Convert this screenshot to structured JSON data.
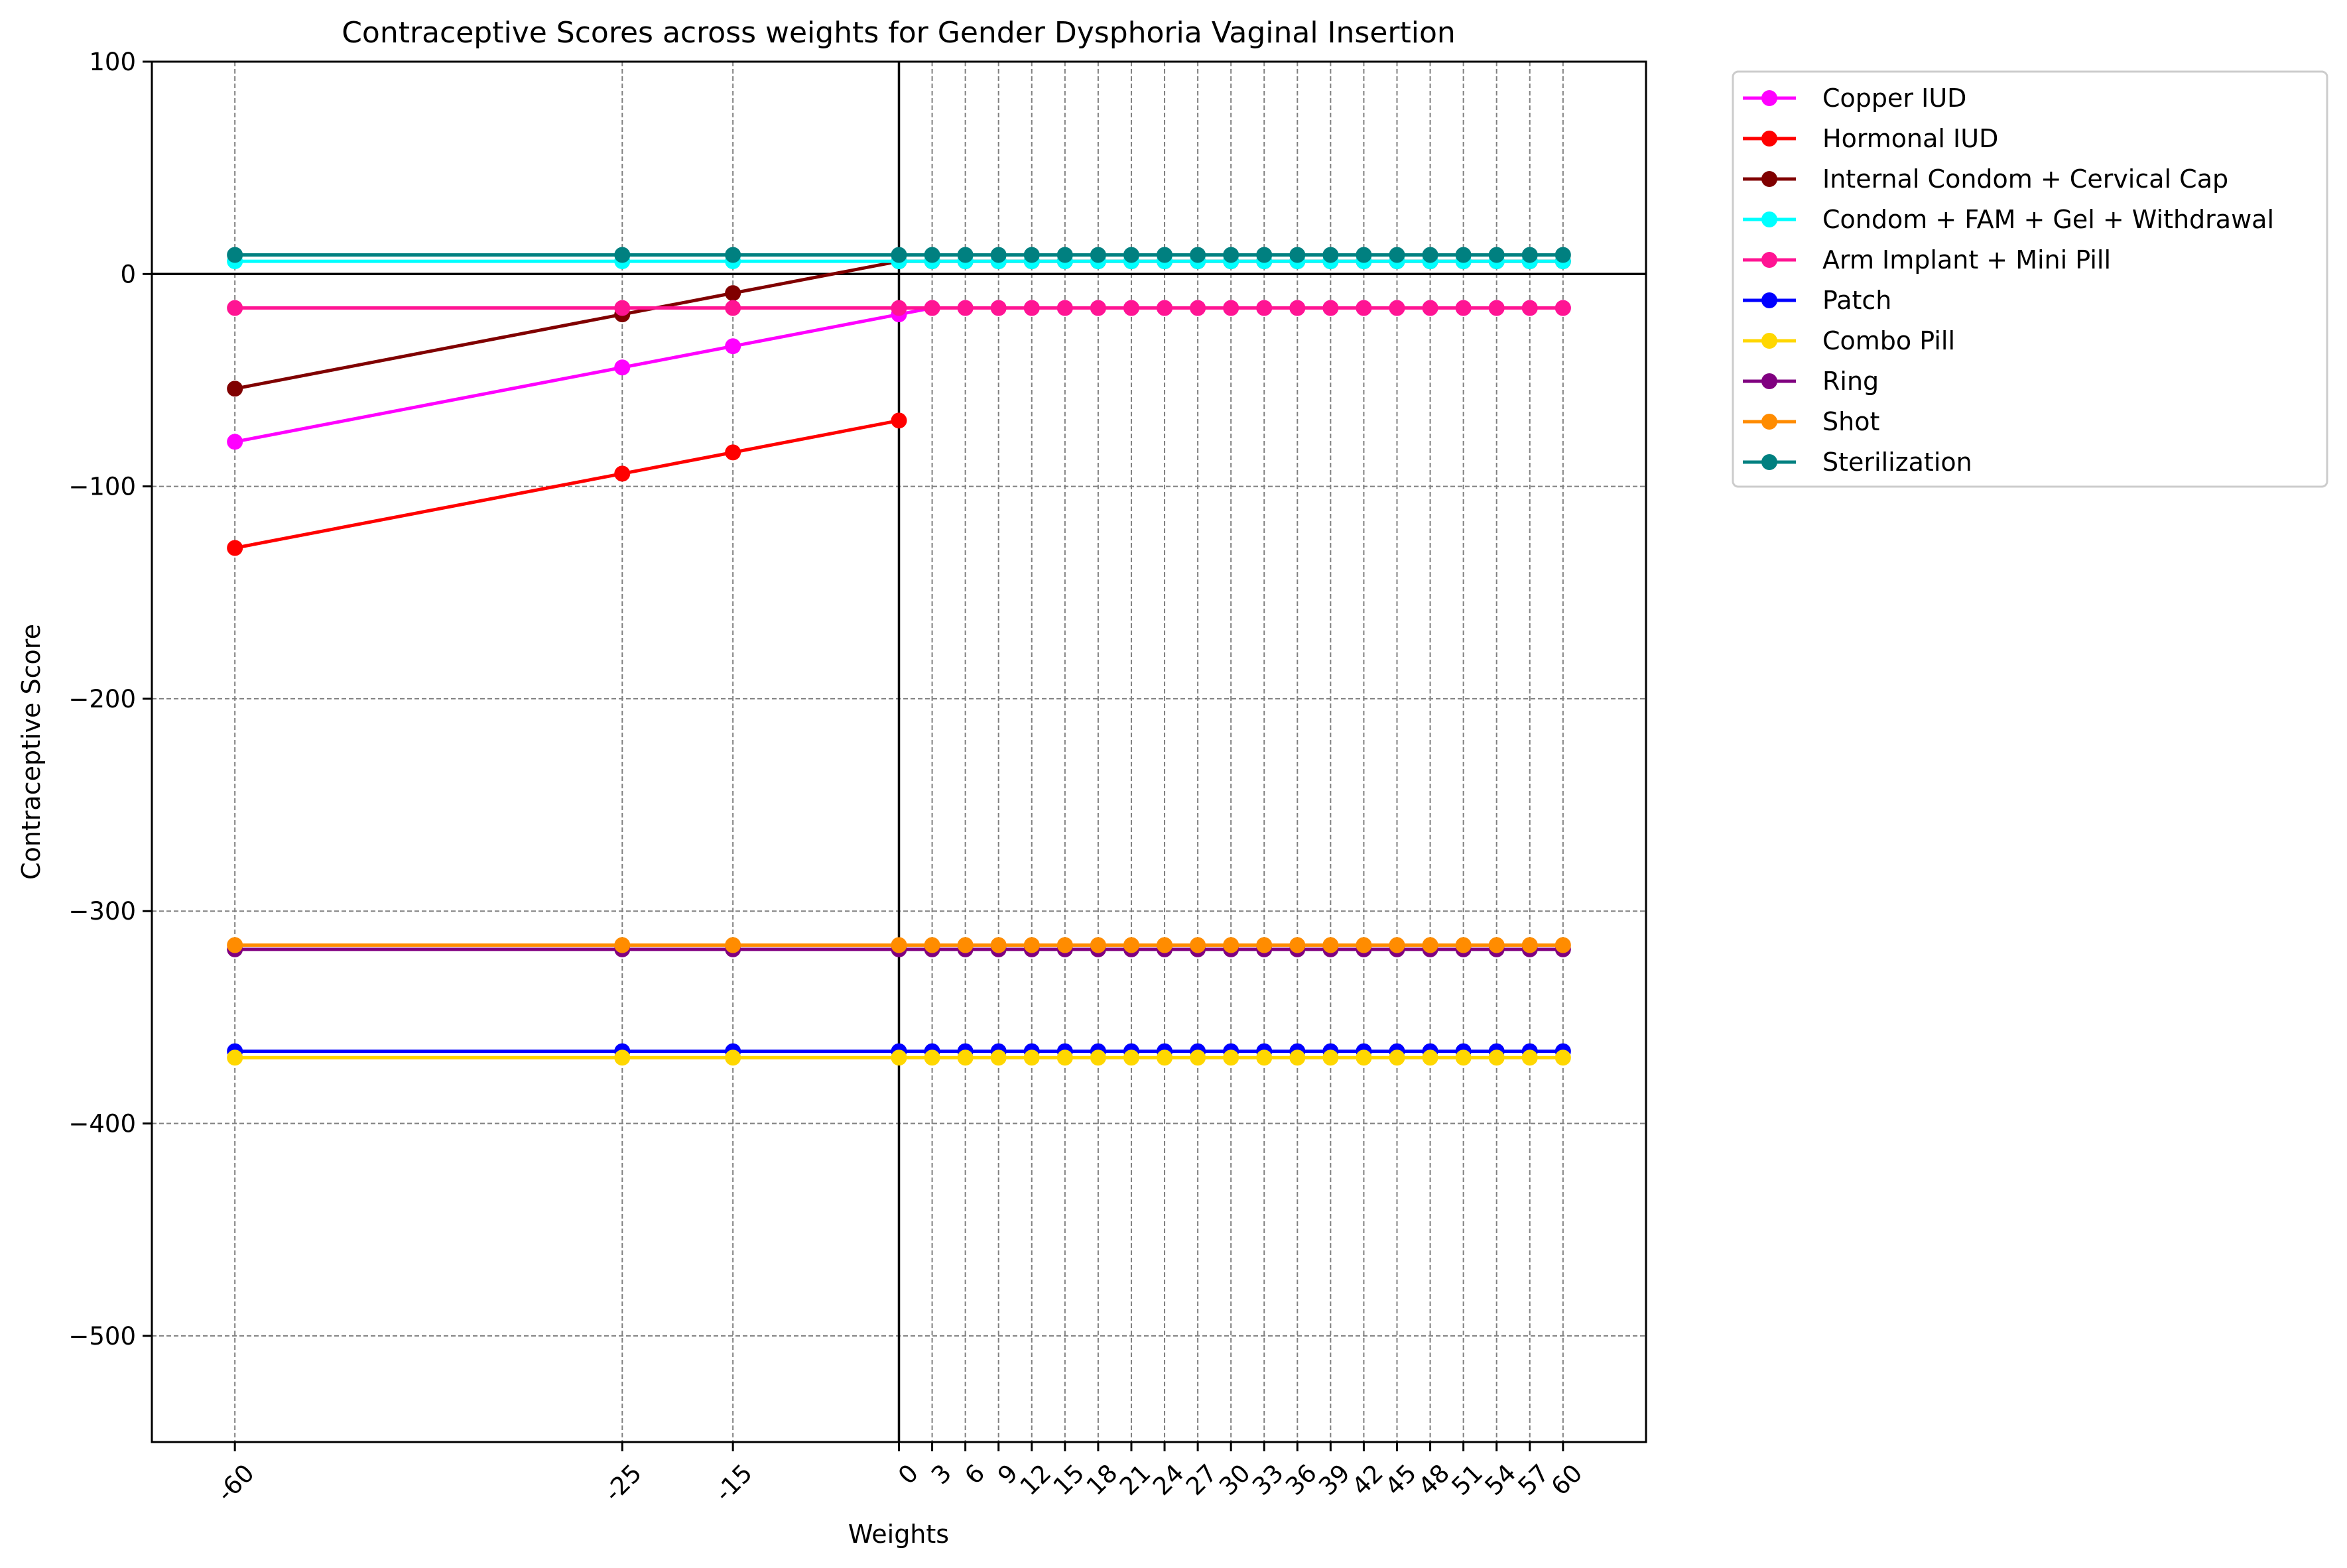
{
  "chart_data": {
    "type": "line",
    "title": "Contraceptive Scores across weights for Gender Dysphoria Vaginal Insertion",
    "xlabel": "Weights",
    "ylabel": "Contraceptive Score",
    "ylim": [
      -550,
      100
    ],
    "xlim": [
      -67.5,
      67.5
    ],
    "yticks": [
      100,
      0,
      -100,
      -200,
      -300,
      -400,
      -500
    ],
    "ytick_labels": [
      "100",
      "0",
      "−100",
      "−200",
      "−300",
      "−400",
      "−500"
    ],
    "x": [
      -60,
      -25,
      -15,
      0,
      3,
      6,
      9,
      12,
      15,
      18,
      21,
      24,
      27,
      30,
      33,
      36,
      39,
      42,
      45,
      48,
      51,
      54,
      57,
      60
    ],
    "xtick_labels": [
      "-60",
      "-25",
      "-15",
      "0",
      "3",
      "6",
      "9",
      "12",
      "15",
      "18",
      "21",
      "24",
      "27",
      "30",
      "33",
      "36",
      "39",
      "42",
      "45",
      "48",
      "51",
      "54",
      "57",
      "60"
    ],
    "grid": true,
    "legend_position": "outside-right",
    "reference_lines": {
      "x": 0,
      "y": 0
    },
    "series": [
      {
        "name": "Copper IUD",
        "color": "#ff00ff",
        "values": [
          -79,
          -44,
          -34,
          -19,
          -16,
          -16,
          -16,
          -16,
          -16,
          -16,
          -16,
          -16,
          -16,
          -16,
          -16,
          -16,
          -16,
          -16,
          -16,
          -16,
          -16,
          -16,
          -16,
          -16
        ]
      },
      {
        "name": "Hormonal IUD",
        "color": "#ff0000",
        "values": [
          -129,
          -94,
          -84,
          -69,
          null,
          null,
          null,
          null,
          null,
          null,
          null,
          null,
          null,
          null,
          null,
          null,
          null,
          null,
          null,
          null,
          null,
          null,
          null,
          null
        ]
      },
      {
        "name": "Internal Condom + Cervical Cap",
        "color": "#800000",
        "values": [
          -54,
          -19,
          -9,
          6,
          6,
          6,
          6,
          6,
          6,
          6,
          6,
          6,
          6,
          6,
          6,
          6,
          6,
          6,
          6,
          6,
          6,
          6,
          6,
          6
        ]
      },
      {
        "name": "Condom + FAM + Gel + Withdrawal",
        "color": "#00ffff",
        "values": [
          6,
          6,
          6,
          6,
          6,
          6,
          6,
          6,
          6,
          6,
          6,
          6,
          6,
          6,
          6,
          6,
          6,
          6,
          6,
          6,
          6,
          6,
          6,
          6
        ]
      },
      {
        "name": "Arm Implant + Mini Pill",
        "color": "#ff1493",
        "values": [
          -16,
          -16,
          -16,
          -16,
          -16,
          -16,
          -16,
          -16,
          -16,
          -16,
          -16,
          -16,
          -16,
          -16,
          -16,
          -16,
          -16,
          -16,
          -16,
          -16,
          -16,
          -16,
          -16,
          -16
        ]
      },
      {
        "name": "Patch",
        "color": "#0000ff",
        "values": [
          -366,
          -366,
          -366,
          -366,
          -366,
          -366,
          -366,
          -366,
          -366,
          -366,
          -366,
          -366,
          -366,
          -366,
          -366,
          -366,
          -366,
          -366,
          -366,
          -366,
          -366,
          -366,
          -366,
          -366
        ]
      },
      {
        "name": "Combo Pill",
        "color": "#ffd700",
        "values": [
          -369,
          -369,
          -369,
          -369,
          -369,
          -369,
          -369,
          -369,
          -369,
          -369,
          -369,
          -369,
          -369,
          -369,
          -369,
          -369,
          -369,
          -369,
          -369,
          -369,
          -369,
          -369,
          -369,
          -369
        ]
      },
      {
        "name": "Ring",
        "color": "#800080",
        "values": [
          -318,
          -318,
          -318,
          -318,
          -318,
          -318,
          -318,
          -318,
          -318,
          -318,
          -318,
          -318,
          -318,
          -318,
          -318,
          -318,
          -318,
          -318,
          -318,
          -318,
          -318,
          -318,
          -318,
          -318
        ]
      },
      {
        "name": "Shot",
        "color": "#ff8c00",
        "values": [
          -316,
          -316,
          -316,
          -316,
          -316,
          -316,
          -316,
          -316,
          -316,
          -316,
          -316,
          -316,
          -316,
          -316,
          -316,
          -316,
          -316,
          -316,
          -316,
          -316,
          -316,
          -316,
          -316,
          -316
        ]
      },
      {
        "name": "Sterilization",
        "color": "#008080",
        "values": [
          9,
          9,
          9,
          9,
          9,
          9,
          9,
          9,
          9,
          9,
          9,
          9,
          9,
          9,
          9,
          9,
          9,
          9,
          9,
          9,
          9,
          9,
          9,
          9
        ]
      }
    ]
  }
}
